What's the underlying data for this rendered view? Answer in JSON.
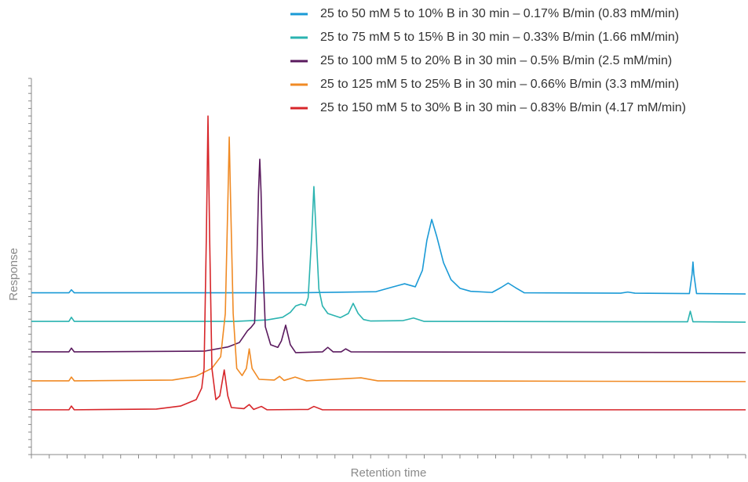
{
  "chart_data": {
    "type": "line",
    "xlabel": "Retention time",
    "ylabel": "Response",
    "legend": "upper right",
    "xlim": [
      0,
      40
    ],
    "xticks": [
      0,
      1,
      2,
      3,
      4,
      5,
      6,
      7,
      8,
      9,
      10,
      11,
      12,
      13,
      14,
      15,
      16,
      17,
      18,
      19,
      20,
      21,
      22,
      23,
      24,
      25,
      26,
      27,
      28,
      29,
      30,
      31,
      32,
      33,
      34,
      35,
      36,
      37,
      38,
      39,
      40
    ],
    "ylim": [
      0,
      100
    ],
    "yticks": [
      0,
      2,
      4,
      6,
      8,
      10,
      12,
      14,
      16,
      18,
      20,
      22,
      24,
      26,
      28,
      30,
      32,
      34,
      36,
      38,
      40,
      42,
      44,
      46,
      48,
      50,
      52,
      54,
      56,
      58,
      60,
      62,
      64,
      66,
      68,
      70,
      72,
      74,
      76,
      78,
      80,
      82,
      84,
      86,
      88,
      90,
      92,
      94,
      96,
      98,
      100
    ],
    "series": [
      {
        "name": "25 to 50 mM 5 to 10% B in 30 min – 0.17% B/min (0.83 mM/min)",
        "color": "#1a9ad6",
        "x": [
          0,
          2.1,
          2.24,
          2.4,
          15,
          19.3,
          20.2,
          20.9,
          21.5,
          21.9,
          22.15,
          22.42,
          22.7,
          23.08,
          23.5,
          24.0,
          24.6,
          25.8,
          26.3,
          26.7,
          27.1,
          27.6,
          33.0,
          33.4,
          33.8,
          36.85,
          37.0,
          37.05,
          37.1,
          37.25,
          40
        ],
        "values": [
          43,
          43,
          43.8,
          43,
          43,
          43.3,
          44.5,
          45.4,
          44.6,
          49,
          57,
          62.5,
          58,
          51,
          46.5,
          44.2,
          43.4,
          43.1,
          44.4,
          45.6,
          44.4,
          43,
          42.9,
          43.2,
          42.9,
          42.8,
          48,
          51.2,
          48,
          42.8,
          42.7
        ]
      },
      {
        "name": "25 to 75 mM 5 to 15% B in 30 min – 0.33% B/min (1.66 mM/min)",
        "color": "#2ab3b0",
        "x": [
          0,
          2.1,
          2.24,
          2.4,
          11.4,
          13.2,
          14.07,
          14.5,
          14.8,
          15.1,
          15.35,
          15.5,
          15.7,
          15.82,
          15.95,
          16.1,
          16.3,
          16.6,
          17.3,
          17.75,
          18.02,
          18.3,
          18.6,
          19.0,
          20.8,
          21.4,
          22.0,
          36.75,
          36.9,
          37.05,
          40
        ],
        "values": [
          35.4,
          35.4,
          36.5,
          35.4,
          35.4,
          35.8,
          36.5,
          37.8,
          39.5,
          40,
          39.6,
          41.7,
          58.3,
          71.25,
          58.3,
          44,
          39.5,
          37.5,
          36.4,
          37.5,
          40.2,
          37.5,
          35.9,
          35.5,
          35.6,
          36.3,
          35.4,
          35.3,
          38.1,
          35.3,
          35.2
        ]
      },
      {
        "name": "25 to 100 mM 5 to 20% B in 30 min – 0.5% B/min (2.5 mM/min)",
        "color": "#5a1a5e",
        "x": [
          0,
          2.1,
          2.24,
          2.4,
          9.7,
          11.0,
          11.65,
          12.1,
          12.3,
          12.5,
          12.62,
          12.72,
          12.79,
          12.86,
          12.95,
          13.1,
          13.4,
          13.8,
          14.0,
          14.24,
          14.5,
          14.8,
          16.3,
          16.6,
          16.9,
          17.35,
          17.6,
          17.9,
          40
        ],
        "values": [
          27.3,
          27.3,
          28.3,
          27.3,
          27.5,
          28.6,
          29.8,
          32.9,
          33.8,
          35,
          50,
          70,
          78.5,
          70,
          52,
          34,
          29.2,
          28.5,
          30.2,
          34.4,
          29.2,
          27.1,
          27.3,
          28.5,
          27.3,
          27.3,
          28.1,
          27.3,
          27.1
        ]
      },
      {
        "name": "25 to 125 mM 5 to 25% B in 30 min – 0.66% B/min (3.3 mM/min)",
        "color": "#f08a24",
        "x": [
          0,
          2.1,
          2.24,
          2.4,
          7.9,
          9.2,
          10.1,
          10.6,
          10.86,
          11.0,
          11.08,
          11.16,
          11.3,
          11.5,
          11.8,
          12.04,
          12.2,
          12.36,
          12.75,
          13.6,
          13.9,
          14.15,
          14.77,
          15.4,
          18.46,
          19.4,
          40
        ],
        "values": [
          19.6,
          19.6,
          20.6,
          19.6,
          19.8,
          20.8,
          22.9,
          26,
          37.5,
          66.7,
          84.4,
          66.7,
          37.5,
          22.9,
          21,
          22.9,
          28.1,
          22.9,
          20,
          19.8,
          20.8,
          19.7,
          20.6,
          19.6,
          20.4,
          19.6,
          19.4
        ]
      },
      {
        "name": "25 to 150 mM 5 to 30% B in 30 min – 0.83% B/min (4.17 mM/min)",
        "color": "#d7262a",
        "x": [
          0,
          2.1,
          2.24,
          2.4,
          7.0,
          8.35,
          9.23,
          9.54,
          9.67,
          9.8,
          9.89,
          9.98,
          10.11,
          10.33,
          10.55,
          10.8,
          11.0,
          11.2,
          11.9,
          12.2,
          12.45,
          12.88,
          13.2,
          15.5,
          15.82,
          16.3,
          40
        ],
        "values": [
          11.9,
          11.9,
          12.9,
          11.9,
          12.1,
          12.9,
          14.6,
          17.7,
          22.9,
          58.3,
          90,
          58.3,
          22.9,
          14.6,
          15.6,
          22.5,
          15.6,
          12.5,
          12.2,
          13.3,
          12,
          12.8,
          11.9,
          12,
          12.8,
          11.9,
          11.9
        ]
      }
    ]
  }
}
